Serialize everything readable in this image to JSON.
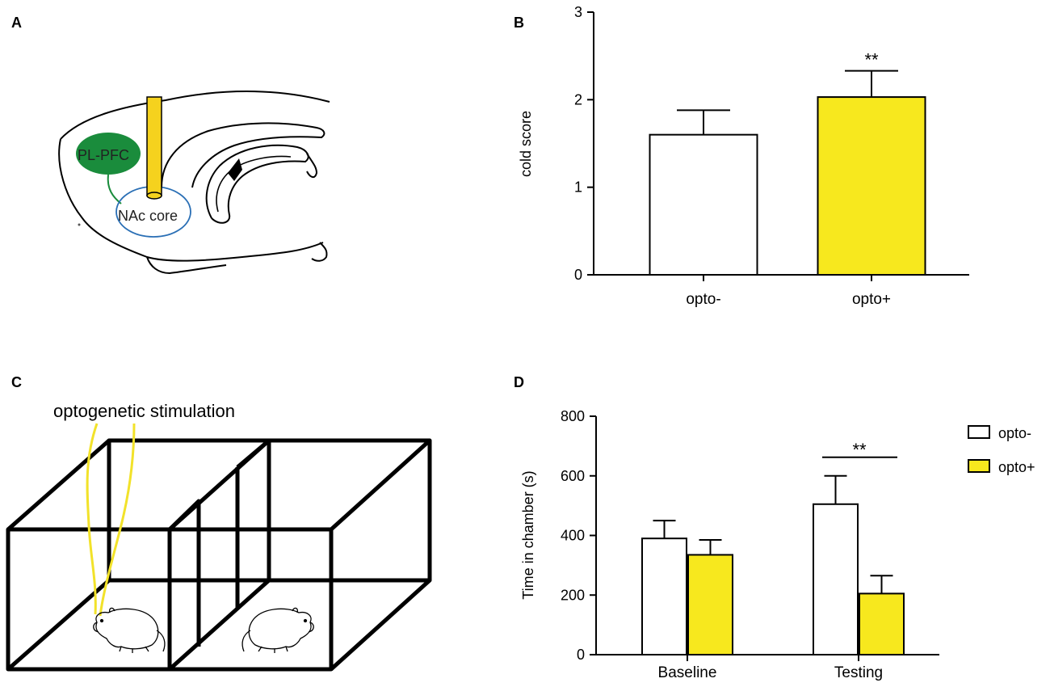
{
  "panels": {
    "a_label": "A",
    "b_label": "B",
    "c_label": "C",
    "d_label": "D"
  },
  "diagram_a": {
    "region_pfc": "PL-PFC",
    "region_nac": "NAc core",
    "colors": {
      "pfc": "#1a8c3c",
      "fiber": "#f5d21e",
      "nac_outline": "#2a6fb5"
    }
  },
  "diagram_c": {
    "caption": "optogenetic stimulation",
    "colors": {
      "wire": "#f2e22a"
    }
  },
  "chart_data": [
    {
      "type": "bar",
      "panel": "B",
      "title": "",
      "xlabel": "",
      "ylabel": "cold score",
      "ylim": [
        0,
        3
      ],
      "yticks": [
        0,
        1,
        2,
        3
      ],
      "categories": [
        "opto-",
        "opto+"
      ],
      "values": [
        1.6,
        2.03
      ],
      "errors": [
        0.28,
        0.3
      ],
      "colors": [
        "#ffffff",
        "#f7e81e"
      ],
      "annotations": [
        {
          "text": "**",
          "category": "opto+"
        }
      ]
    },
    {
      "type": "bar",
      "panel": "D",
      "title": "",
      "xlabel": "",
      "ylabel": "Time in chamber (s)",
      "ylim": [
        0,
        800
      ],
      "yticks": [
        0,
        200,
        400,
        600,
        800
      ],
      "categories": [
        "Baseline",
        "Testing"
      ],
      "series": [
        {
          "name": "opto-",
          "values": [
            390,
            505
          ],
          "errors": [
            60,
            95
          ],
          "color": "#ffffff"
        },
        {
          "name": "opto+",
          "values": [
            335,
            205
          ],
          "errors": [
            50,
            60
          ],
          "color": "#f7e81e"
        }
      ],
      "annotations": [
        {
          "text": "**",
          "category": "Testing"
        }
      ],
      "legend": "top-right"
    }
  ]
}
